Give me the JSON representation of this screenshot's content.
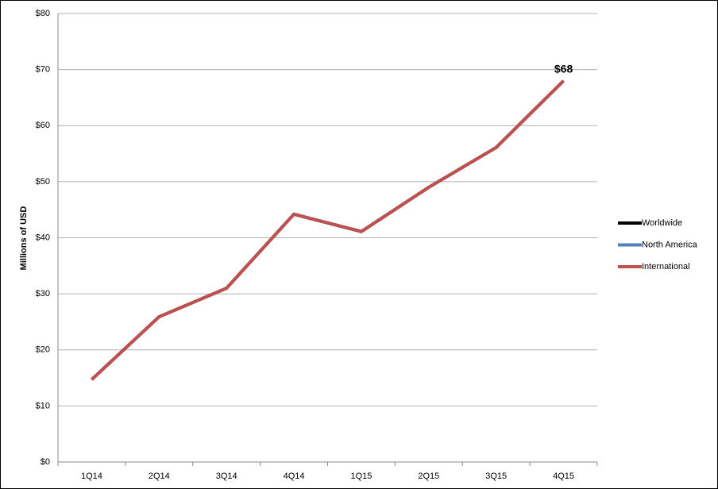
{
  "chart_data": {
    "type": "line",
    "y_label": "Millions of USD",
    "categories": [
      "1Q14",
      "2Q14",
      "3Q14",
      "4Q14",
      "1Q15",
      "2Q15",
      "3Q15",
      "4Q15"
    ],
    "series": [
      {
        "name": "Worldwide",
        "color": "#000000",
        "values": [
          14.7,
          25.9,
          31,
          44.2,
          41.1,
          49,
          56.1,
          68
        ]
      },
      {
        "name": "North America",
        "color": "#4f81bd",
        "values": [
          14.7,
          25.9,
          31,
          44.2,
          41.1,
          49,
          56.1,
          68
        ]
      },
      {
        "name": "International",
        "color": "#c0504d",
        "values": [
          14.7,
          25.9,
          31,
          44.2,
          41.1,
          49,
          56.1,
          68
        ],
        "value_labels": [
          null,
          null,
          null,
          null,
          null,
          null,
          null,
          "$68"
        ]
      }
    ],
    "ylim": [
      0,
      80
    ],
    "yticks": [
      {
        "value": 0,
        "label": "$0"
      },
      {
        "value": 10,
        "label": "$10"
      },
      {
        "value": 20,
        "label": "$20"
      },
      {
        "value": 30,
        "label": "$30"
      },
      {
        "value": 40,
        "label": "$40"
      },
      {
        "value": 50,
        "label": "$50"
      },
      {
        "value": 60,
        "label": "$60"
      },
      {
        "value": 70,
        "label": "$70"
      },
      {
        "value": 80,
        "label": "$80"
      }
    ],
    "grid": true,
    "legend": "right"
  }
}
